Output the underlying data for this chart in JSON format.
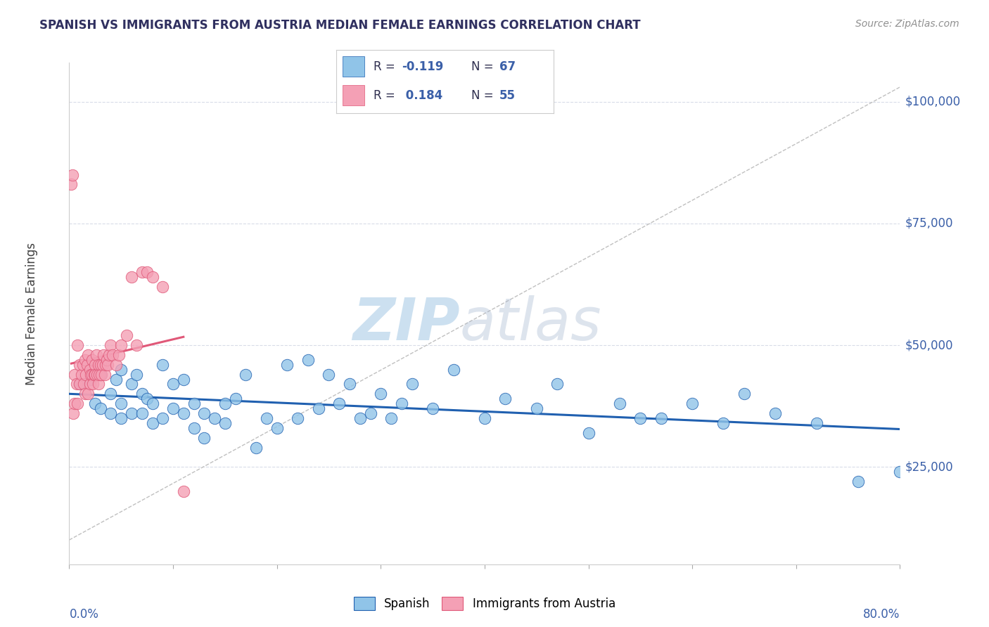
{
  "title": "SPANISH VS IMMIGRANTS FROM AUSTRIA MEDIAN FEMALE EARNINGS CORRELATION CHART",
  "source": "Source: ZipAtlas.com",
  "ylabel": "Median Female Earnings",
  "ytick_labels": [
    "$25,000",
    "$50,000",
    "$75,000",
    "$100,000"
  ],
  "ytick_values": [
    25000,
    50000,
    75000,
    100000
  ],
  "ymin": 5000,
  "ymax": 108000,
  "xmin": 0.0,
  "xmax": 0.8,
  "legend1_label": "Spanish",
  "legend2_label": "Immigrants from Austria",
  "r1": -0.119,
  "n1": 67,
  "r2": 0.184,
  "n2": 55,
  "color_blue": "#90c4e8",
  "color_pink": "#f4a0b5",
  "color_line_blue": "#2060b0",
  "color_line_pink": "#e05878",
  "title_color": "#303060",
  "axis_label_color": "#3a5fa8",
  "watermark_zip": "ZIP",
  "watermark_atlas": "atlas",
  "background_color": "#ffffff",
  "grid_color": "#d8dce8",
  "blue_scatter_x": [
    0.01,
    0.02,
    0.025,
    0.03,
    0.03,
    0.04,
    0.04,
    0.045,
    0.05,
    0.05,
    0.05,
    0.06,
    0.06,
    0.065,
    0.07,
    0.07,
    0.075,
    0.08,
    0.08,
    0.09,
    0.09,
    0.1,
    0.1,
    0.11,
    0.11,
    0.12,
    0.12,
    0.13,
    0.13,
    0.14,
    0.15,
    0.15,
    0.16,
    0.17,
    0.18,
    0.19,
    0.2,
    0.21,
    0.22,
    0.23,
    0.24,
    0.25,
    0.26,
    0.27,
    0.28,
    0.29,
    0.3,
    0.31,
    0.32,
    0.33,
    0.35,
    0.37,
    0.4,
    0.42,
    0.45,
    0.47,
    0.5,
    0.53,
    0.55,
    0.57,
    0.6,
    0.63,
    0.65,
    0.68,
    0.72,
    0.76,
    0.8
  ],
  "blue_scatter_y": [
    42000,
    43000,
    38000,
    44000,
    37000,
    40000,
    36000,
    43000,
    45000,
    38000,
    35000,
    42000,
    36000,
    44000,
    40000,
    36000,
    39000,
    38000,
    34000,
    46000,
    35000,
    37000,
    42000,
    36000,
    43000,
    38000,
    33000,
    36000,
    31000,
    35000,
    34000,
    38000,
    39000,
    44000,
    29000,
    35000,
    33000,
    46000,
    35000,
    47000,
    37000,
    44000,
    38000,
    42000,
    35000,
    36000,
    40000,
    35000,
    38000,
    42000,
    37000,
    45000,
    35000,
    39000,
    37000,
    42000,
    32000,
    38000,
    35000,
    35000,
    38000,
    34000,
    40000,
    36000,
    34000,
    22000,
    24000
  ],
  "pink_scatter_x": [
    0.002,
    0.003,
    0.004,
    0.005,
    0.005,
    0.007,
    0.008,
    0.008,
    0.01,
    0.01,
    0.012,
    0.013,
    0.014,
    0.015,
    0.015,
    0.016,
    0.017,
    0.018,
    0.018,
    0.02,
    0.02,
    0.021,
    0.022,
    0.022,
    0.023,
    0.024,
    0.025,
    0.025,
    0.026,
    0.027,
    0.028,
    0.028,
    0.029,
    0.03,
    0.031,
    0.032,
    0.033,
    0.034,
    0.035,
    0.036,
    0.037,
    0.038,
    0.04,
    0.042,
    0.045,
    0.048,
    0.05,
    0.055,
    0.06,
    0.065,
    0.07,
    0.075,
    0.08,
    0.09,
    0.11
  ],
  "pink_scatter_y": [
    83000,
    85000,
    36000,
    38000,
    44000,
    42000,
    38000,
    50000,
    46000,
    42000,
    44000,
    46000,
    42000,
    40000,
    47000,
    44000,
    46000,
    48000,
    40000,
    45000,
    42000,
    44000,
    47000,
    44000,
    42000,
    44000,
    46000,
    44000,
    48000,
    44000,
    46000,
    42000,
    44000,
    46000,
    44000,
    46000,
    48000,
    44000,
    46000,
    47000,
    46000,
    48000,
    50000,
    48000,
    46000,
    48000,
    50000,
    52000,
    64000,
    50000,
    65000,
    65000,
    64000,
    62000,
    20000
  ],
  "xtick_positions": [
    0.0,
    0.1,
    0.2,
    0.3,
    0.4,
    0.5,
    0.6,
    0.7,
    0.8
  ]
}
